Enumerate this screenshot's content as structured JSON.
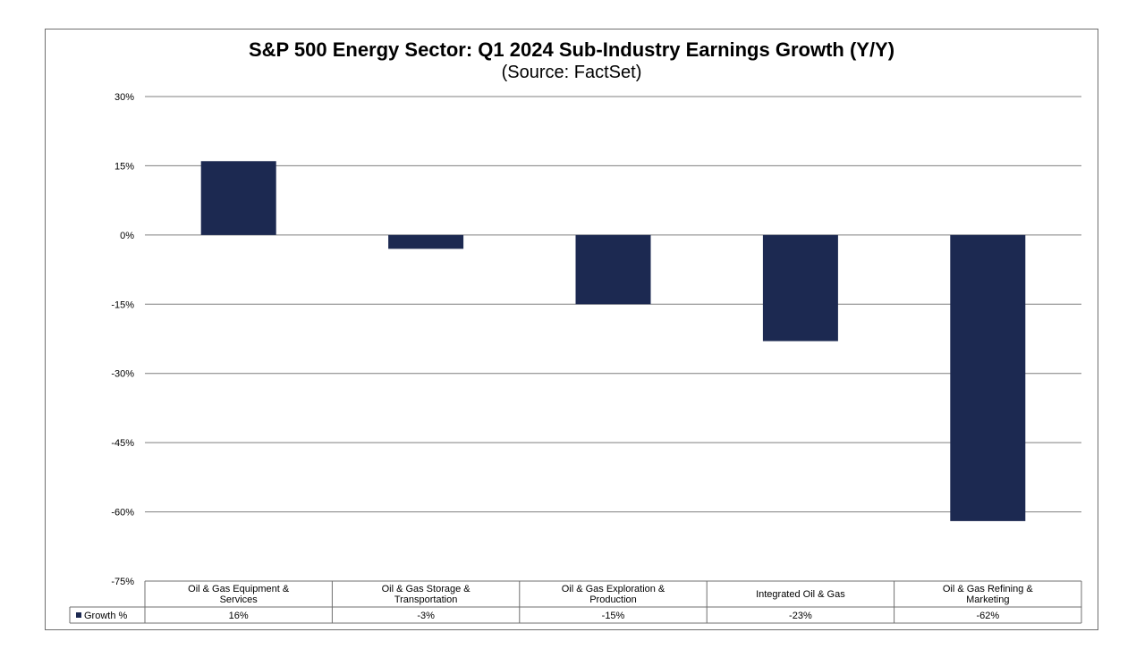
{
  "chart_data": {
    "type": "bar",
    "title": "S&P 500 Energy Sector: Q1 2024 Sub-Industry Earnings Growth (Y/Y)",
    "subtitle": "(Source: FactSet)",
    "categories": [
      [
        "Oil & Gas Equipment &",
        "Services"
      ],
      [
        "Oil & Gas Storage &",
        "Transportation"
      ],
      [
        "Oil & Gas Exploration &",
        "Production"
      ],
      [
        "Integrated Oil & Gas"
      ],
      [
        "Oil & Gas Refining &",
        "Marketing"
      ]
    ],
    "series": [
      {
        "name": "Growth %",
        "values": [
          16,
          -3,
          -15,
          -23,
          -62
        ],
        "labels": [
          "16%",
          "-3%",
          "-15%",
          "-23%",
          "-62%"
        ]
      }
    ],
    "ylim": [
      -75,
      30
    ],
    "yticks": [
      30,
      15,
      0,
      -15,
      -30,
      -45,
      -60,
      -75
    ],
    "ytick_labels": [
      "30%",
      "15%",
      "0%",
      "-15%",
      "-30%",
      "-45%",
      "-60%",
      "-75%"
    ],
    "grid": true,
    "legend": "data-table",
    "bar_color": "#1c2951"
  }
}
